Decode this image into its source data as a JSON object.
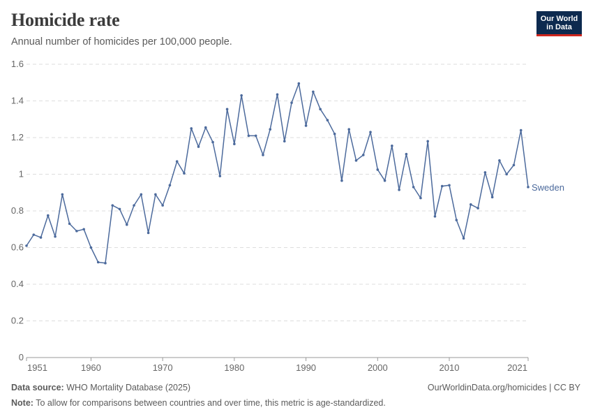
{
  "header": {
    "title": "Homicide rate",
    "subtitle": "Annual number of homicides per 100,000 people."
  },
  "logo": {
    "line1": "Our World",
    "line2": "in Data"
  },
  "footer": {
    "source_label": "Data source:",
    "source_text": "WHO Mortality Database (2025)",
    "link_text": "OurWorldinData.org/homicides | CC BY",
    "note_label": "Note:",
    "note_text": "To allow for comparisons between countries and over time, this metric is age-standardized."
  },
  "colors": {
    "series": "#4c6a9c",
    "grid": "#dddddd",
    "logo_bg": "#0d2a4f",
    "logo_accent": "#ce261e"
  },
  "chart_data": {
    "type": "line",
    "ylim": [
      0,
      1.6
    ],
    "xlim": [
      1951,
      2021
    ],
    "y_ticks": [
      0,
      0.2,
      0.4,
      0.6,
      0.8,
      1,
      1.2,
      1.4,
      1.6
    ],
    "y_tick_labels": [
      "0",
      "0.2",
      "0.4",
      "0.6",
      "0.8",
      "1",
      "1.2",
      "1.4",
      "1.6"
    ],
    "x_ticks": [
      1951,
      1960,
      1970,
      1980,
      1990,
      2000,
      2010,
      2021
    ],
    "x_tick_labels": [
      "1951",
      "1960",
      "1970",
      "1980",
      "1990",
      "2000",
      "2010",
      "2021"
    ],
    "grid": "horizontal-dashed",
    "series": [
      {
        "name": "Sweden",
        "x": [
          1951,
          1952,
          1953,
          1954,
          1955,
          1956,
          1957,
          1958,
          1959,
          1960,
          1961,
          1962,
          1963,
          1964,
          1965,
          1966,
          1967,
          1968,
          1969,
          1970,
          1971,
          1972,
          1973,
          1974,
          1975,
          1976,
          1977,
          1978,
          1979,
          1980,
          1981,
          1982,
          1983,
          1984,
          1985,
          1986,
          1987,
          1988,
          1989,
          1990,
          1991,
          1992,
          1993,
          1994,
          1995,
          1996,
          1997,
          1998,
          1999,
          2000,
          2001,
          2002,
          2003,
          2004,
          2005,
          2006,
          2007,
          2008,
          2009,
          2010,
          2011,
          2012,
          2013,
          2014,
          2015,
          2016,
          2017,
          2018,
          2019,
          2020,
          2021
        ],
        "values": [
          0.61,
          0.67,
          0.655,
          0.775,
          0.66,
          0.89,
          0.73,
          0.69,
          0.7,
          0.6,
          0.52,
          0.515,
          0.83,
          0.81,
          0.725,
          0.83,
          0.89,
          0.68,
          0.89,
          0.83,
          0.94,
          1.07,
          1.005,
          1.25,
          1.15,
          1.255,
          1.175,
          0.99,
          1.355,
          1.165,
          1.43,
          1.21,
          1.21,
          1.105,
          1.245,
          1.435,
          1.18,
          1.39,
          1.495,
          1.265,
          1.45,
          1.355,
          1.295,
          1.22,
          0.965,
          1.245,
          1.075,
          1.105,
          1.23,
          1.025,
          0.965,
          1.155,
          0.915,
          1.11,
          0.93,
          0.87,
          1.18,
          0.77,
          0.935,
          0.94,
          0.75,
          0.65,
          0.835,
          0.815,
          1.01,
          0.875,
          1.075,
          1.0,
          1.05,
          1.24,
          0.93
        ]
      }
    ]
  }
}
